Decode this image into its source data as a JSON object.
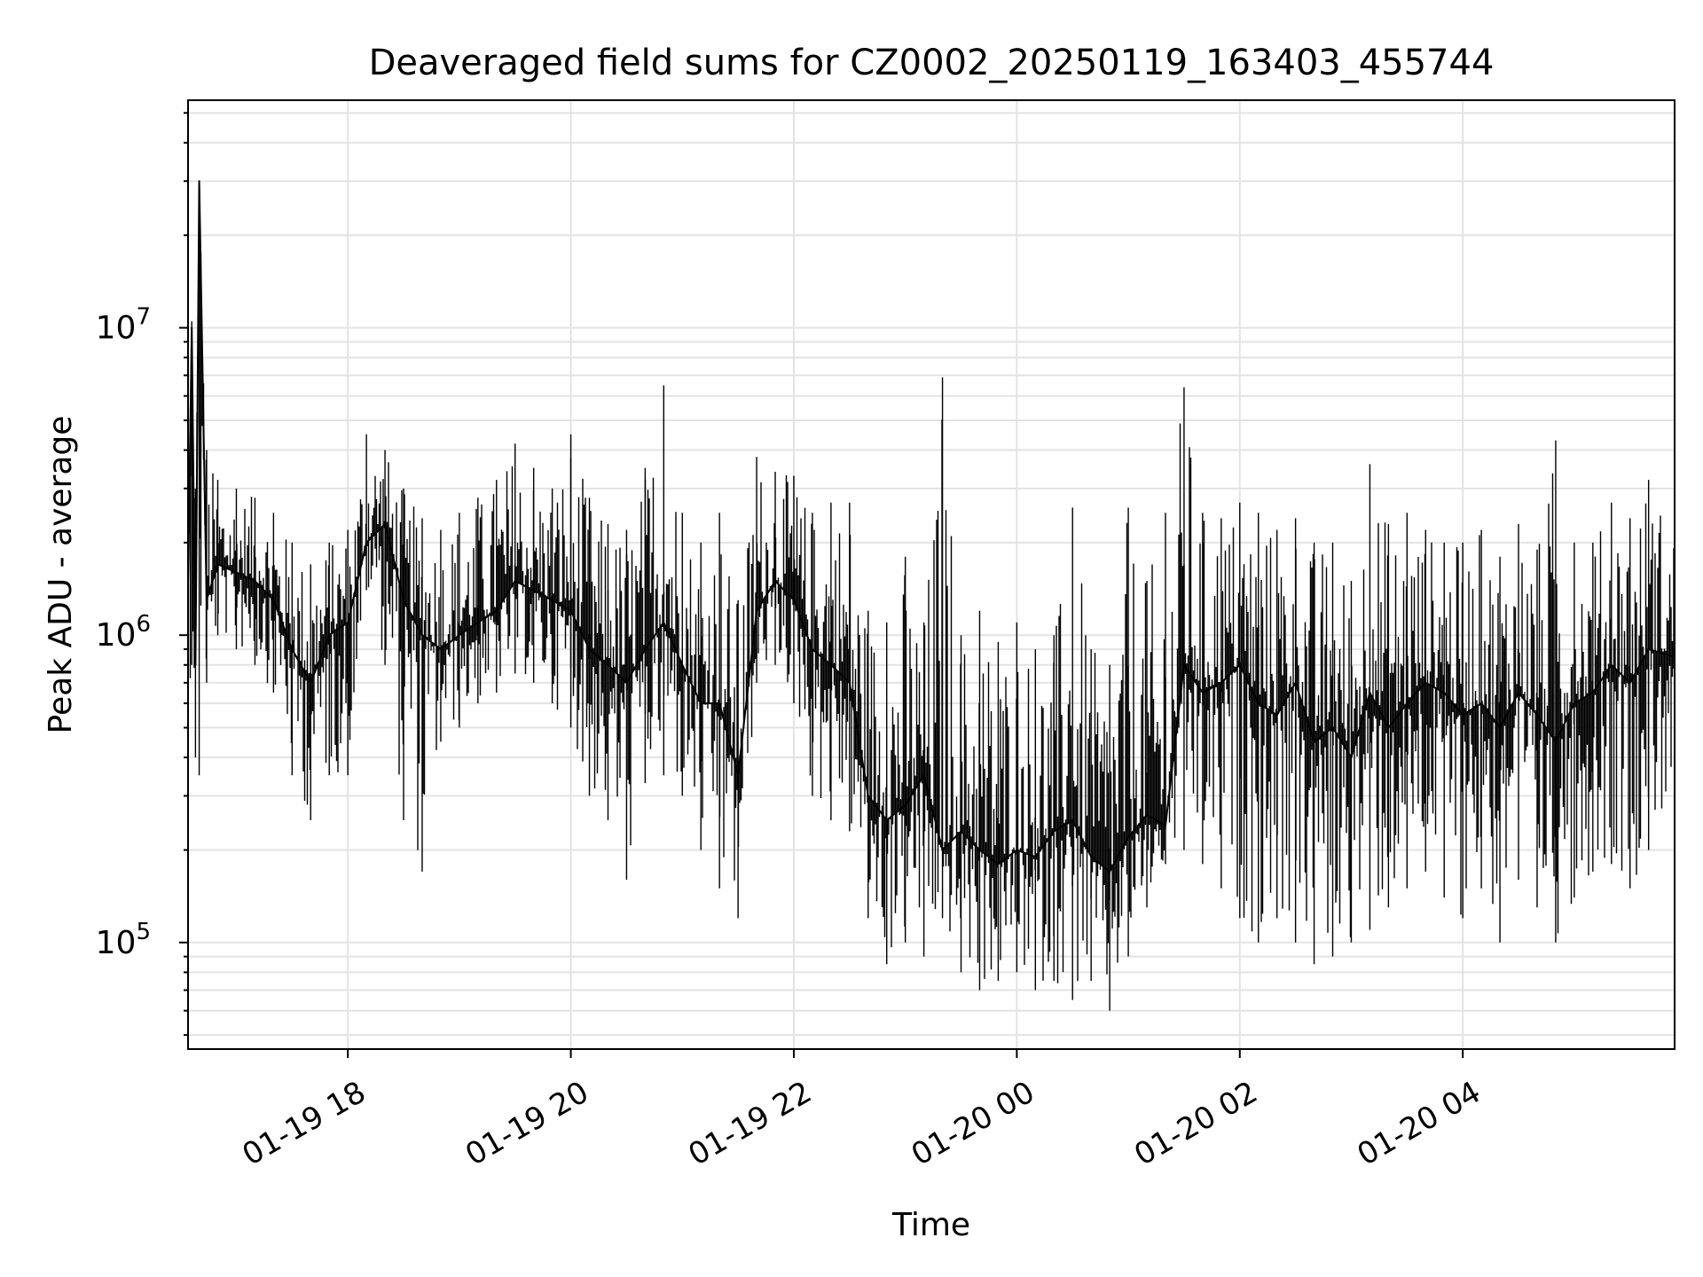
{
  "chart_data": {
    "type": "line",
    "title": "Deaveraged field sums for CZ0002_20250119_163403_455744",
    "xlabel": "Time",
    "ylabel": "Peak ADU - average",
    "x_range": [
      "2025-01-19 16:34",
      "2025-01-20 05:54"
    ],
    "ylim": [
      45000,
      55000000
    ],
    "yscale": "log",
    "grid": true,
    "line_color": "#000000",
    "x_ticks": [
      {
        "value": "2025-01-19 18:00",
        "label": "01-19 18"
      },
      {
        "value": "2025-01-19 20:00",
        "label": "01-19 20"
      },
      {
        "value": "2025-01-19 22:00",
        "label": "01-19 22"
      },
      {
        "value": "2025-01-20 00:00",
        "label": "01-20 00"
      },
      {
        "value": "2025-01-20 02:00",
        "label": "01-20 02"
      },
      {
        "value": "2025-01-20 04:00",
        "label": "01-20 04"
      }
    ],
    "y_ticks": [
      {
        "value": 100000,
        "base": "10",
        "exp": "5"
      },
      {
        "value": 1000000,
        "base": "10",
        "exp": "6"
      },
      {
        "value": 10000000,
        "base": "10",
        "exp": "7"
      }
    ],
    "series": [
      {
        "x": [
          "2025-01-19 16:34",
          "2025-01-19 16:36",
          "2025-01-19 16:38",
          "2025-01-19 16:40",
          "2025-01-19 16:44",
          "2025-01-19 16:50",
          "2025-01-19 17:00",
          "2025-01-19 17:10",
          "2025-01-19 17:20",
          "2025-01-19 17:30",
          "2025-01-19 17:40",
          "2025-01-19 17:50",
          "2025-01-19 18:00",
          "2025-01-19 18:10",
          "2025-01-19 18:20",
          "2025-01-19 18:30",
          "2025-01-19 18:40",
          "2025-01-19 18:50",
          "2025-01-19 19:00",
          "2025-01-19 19:10",
          "2025-01-19 19:20",
          "2025-01-19 19:30",
          "2025-01-19 19:40",
          "2025-01-19 19:50",
          "2025-01-19 20:00",
          "2025-01-19 20:10",
          "2025-01-19 20:20",
          "2025-01-19 20:30",
          "2025-01-19 20:40",
          "2025-01-19 20:50",
          "2025-01-19 21:00",
          "2025-01-19 21:10",
          "2025-01-19 21:20",
          "2025-01-19 21:30",
          "2025-01-19 21:40",
          "2025-01-19 21:50",
          "2025-01-19 22:00",
          "2025-01-19 22:10",
          "2025-01-19 22:20",
          "2025-01-19 22:30",
          "2025-01-19 22:40",
          "2025-01-19 22:50",
          "2025-01-19 23:00",
          "2025-01-19 23:10",
          "2025-01-19 23:20",
          "2025-01-19 23:30",
          "2025-01-19 23:40",
          "2025-01-19 23:50",
          "2025-01-20 00:00",
          "2025-01-20 00:10",
          "2025-01-20 00:20",
          "2025-01-20 00:30",
          "2025-01-20 00:40",
          "2025-01-20 00:50",
          "2025-01-20 01:00",
          "2025-01-20 01:10",
          "2025-01-20 01:20",
          "2025-01-20 01:30",
          "2025-01-20 01:40",
          "2025-01-20 01:50",
          "2025-01-20 02:00",
          "2025-01-20 02:10",
          "2025-01-20 02:20",
          "2025-01-20 02:30",
          "2025-01-20 02:40",
          "2025-01-20 02:50",
          "2025-01-20 03:00",
          "2025-01-20 03:10",
          "2025-01-20 03:20",
          "2025-01-20 03:30",
          "2025-01-20 03:40",
          "2025-01-20 03:50",
          "2025-01-20 04:00",
          "2025-01-20 04:10",
          "2025-01-20 04:20",
          "2025-01-20 04:30",
          "2025-01-20 04:40",
          "2025-01-20 04:50",
          "2025-01-20 05:00",
          "2025-01-20 05:10",
          "2025-01-20 05:20",
          "2025-01-20 05:30",
          "2025-01-20 05:40",
          "2025-01-20 05:54"
        ],
        "y": [
          1500000,
          10000000,
          800000,
          30000000,
          1300000,
          1700000,
          1600000,
          1500000,
          1300000,
          900000,
          700000,
          1000000,
          1100000,
          2000000,
          2300000,
          1300000,
          1000000,
          900000,
          1000000,
          1100000,
          1200000,
          1500000,
          1400000,
          1300000,
          1200000,
          900000,
          800000,
          700000,
          900000,
          1100000,
          800000,
          600000,
          600000,
          350000,
          1200000,
          1500000,
          1300000,
          900000,
          800000,
          700000,
          300000,
          250000,
          280000,
          350000,
          200000,
          230000,
          200000,
          180000,
          200000,
          190000,
          230000,
          250000,
          190000,
          170000,
          220000,
          260000,
          240000,
          800000,
          650000,
          700000,
          800000,
          600000,
          550000,
          700000,
          450000,
          500000,
          400000,
          650000,
          500000,
          600000,
          700000,
          650000,
          550000,
          600000,
          500000,
          650000,
          550000,
          450000,
          600000,
          650000,
          800000,
          700000,
          900000,
          850000
        ],
        "y_max": [
          2500000,
          10500000,
          3000000,
          30000000,
          4000000,
          3200000,
          3000000,
          2800000,
          2500000,
          2000000,
          1700000,
          2000000,
          2200000,
          4500000,
          4000000,
          3000000,
          2400000,
          2200000,
          2500000,
          2800000,
          3200000,
          4200000,
          3500000,
          3000000,
          4500000,
          2800000,
          2300000,
          2200000,
          3500000,
          6500000,
          2500000,
          2000000,
          2500000,
          1300000,
          3800000,
          3400000,
          3300000,
          2500000,
          2700000,
          2700000,
          1200000,
          1100000,
          1800000,
          1100000,
          6900000,
          1000000,
          1200000,
          950000,
          1100000,
          900000,
          1000000,
          2600000,
          900000,
          800000,
          2600000,
          1500000,
          2500000,
          6400000,
          2500000,
          2400000,
          2700000,
          2500000,
          2200000,
          2400000,
          2000000,
          2000000,
          1500000,
          3600000,
          2300000,
          2500000,
          2200000,
          2000000,
          2000000,
          2200000,
          1800000,
          2300000,
          1900000,
          4300000,
          2000000,
          2000000,
          2700000,
          2400000,
          3200000,
          2300000
        ],
        "y_min": [
          600000,
          800000,
          400000,
          350000,
          700000,
          1000000,
          900000,
          800000,
          650000,
          350000,
          250000,
          350000,
          350000,
          1400000,
          800000,
          250000,
          170000,
          450000,
          500000,
          600000,
          650000,
          750000,
          700000,
          600000,
          500000,
          300000,
          250000,
          160000,
          330000,
          350000,
          300000,
          200000,
          150000,
          120000,
          700000,
          800000,
          600000,
          300000,
          250000,
          230000,
          120000,
          85000,
          100000,
          90000,
          120000,
          80000,
          70000,
          75000,
          80000,
          70000,
          75000,
          65000,
          75000,
          60000,
          90000,
          130000,
          180000,
          200000,
          180000,
          150000,
          120000,
          100000,
          120000,
          100000,
          85000,
          90000,
          100000,
          110000,
          130000,
          150000,
          170000,
          140000,
          120000,
          150000,
          100000,
          160000,
          130000,
          100000,
          140000,
          170000,
          180000,
          150000,
          200000,
          300000
        ]
      }
    ]
  }
}
